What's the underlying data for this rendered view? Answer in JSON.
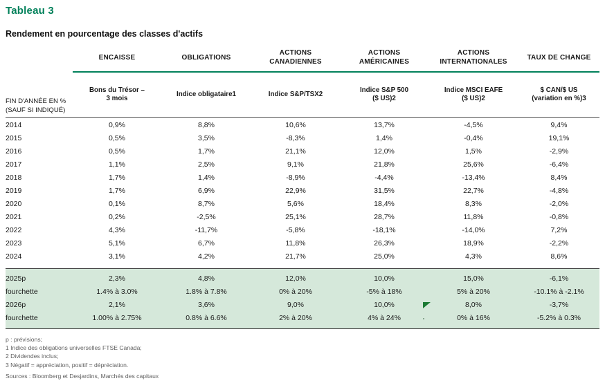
{
  "title": "Tableau 3",
  "subtitle": "Rendement en pourcentage des classes d'actifs",
  "table": {
    "row_header": {
      "line1": "FIN D'ANNÉE EN %",
      "line2": "(SAUF SI INDIQUÉ)"
    },
    "columns": [
      {
        "group1": "ENCAISSE",
        "group2": "",
        "sub1": "Bons du Trésor –",
        "sub2": "3 mois"
      },
      {
        "group1": "OBLIGATIONS",
        "group2": "",
        "sub1": "Indice obligataire1",
        "sub2": ""
      },
      {
        "group1": "ACTIONS",
        "group2": "CANADIENNES",
        "sub1": "Indice S&P/TSX2",
        "sub2": ""
      },
      {
        "group1": "ACTIONS",
        "group2": "AMÉRICAINES",
        "sub1": "Indice S&P 500",
        "sub2": "($ US)2"
      },
      {
        "group1": "ACTIONS",
        "group2": "INTERNATIONALES",
        "sub1": "Indice MSCI EAFE",
        "sub2": "($ US)2"
      },
      {
        "group1": "TAUX DE CHANGE",
        "group2": "",
        "sub1": "$ CAN/$ US",
        "sub2": "(variation en %)3"
      }
    ],
    "history_rows": [
      {
        "label": "2014",
        "values": [
          "0,9%",
          "8,8%",
          "10,6%",
          "13,7%",
          "-4,5%",
          "9,4%"
        ]
      },
      {
        "label": "2015",
        "values": [
          "0,5%",
          "3,5%",
          "-8,3%",
          "1,4%",
          "-0,4%",
          "19,1%"
        ]
      },
      {
        "label": "2016",
        "values": [
          "0,5%",
          "1,7%",
          "21,1%",
          "12,0%",
          "1,5%",
          "-2,9%"
        ]
      },
      {
        "label": "2017",
        "values": [
          "1,1%",
          "2,5%",
          "9,1%",
          "21,8%",
          "25,6%",
          "-6,4%"
        ]
      },
      {
        "label": "2018",
        "values": [
          "1,7%",
          "1,4%",
          "-8,9%",
          "-4,4%",
          "-13,4%",
          "8,4%"
        ]
      },
      {
        "label": "2019",
        "values": [
          "1,7%",
          "6,9%",
          "22,9%",
          "31,5%",
          "22,7%",
          "-4,8%"
        ]
      },
      {
        "label": "2020",
        "values": [
          "0,1%",
          "8,7%",
          "5,6%",
          "18,4%",
          "8,3%",
          "-2,0%"
        ]
      },
      {
        "label": "2021",
        "values": [
          "0,2%",
          "-2,5%",
          "25,1%",
          "28,7%",
          "11,8%",
          "-0,8%"
        ]
      },
      {
        "label": "2022",
        "values": [
          "4,3%",
          "-11,7%",
          "-5,8%",
          "-18,1%",
          "-14,0%",
          "7,2%"
        ]
      },
      {
        "label": "2023",
        "values": [
          "5,1%",
          "6,7%",
          "11,8%",
          "26,3%",
          "18,9%",
          "-2,2%"
        ]
      },
      {
        "label": "2024",
        "values": [
          "3,1%",
          "4,2%",
          "21,7%",
          "25,0%",
          "4,3%",
          "8,6%"
        ]
      }
    ],
    "forecast_rows": [
      {
        "label": "2025p",
        "values": [
          "2,3%",
          "4,8%",
          "12,0%",
          "10,0%",
          "15,0%",
          "-6,1%"
        ]
      },
      {
        "label": "fourchette",
        "values": [
          "1.4% à 3.0%",
          "1.8% à 7.8%",
          "0% à 20%",
          "-5% à 18%",
          "5% à 20%",
          "-10.1% à -2.1%"
        ]
      },
      {
        "label": "2026p",
        "values": [
          "2,1%",
          "3,6%",
          "9,0%",
          "10,0%",
          "8,0%",
          "-3,7%"
        ]
      },
      {
        "label": "fourchette",
        "values": [
          "1.00% à 2.75%",
          "0.8% à 6.6%",
          "2% à 20%",
          "4% à 24%",
          "0% à 16%",
          "-5.2% à 0.3%"
        ]
      }
    ]
  },
  "footnotes": [
    "p : prévisions;",
    "1 Indice des obligations universelles FTSE Canada;",
    "2 Dividendes inclus;",
    "3 Négatif = appréciation, positif = dépréciation.",
    "Sources : Bloomberg et Desjardins, Marchés des capitaux"
  ],
  "colors": {
    "accent_green": "#00805a",
    "band_green": "#d5e8da",
    "line_dark": "#404040",
    "footnote_gray": "#5f5f5f",
    "marker_green": "#1b7a33"
  }
}
